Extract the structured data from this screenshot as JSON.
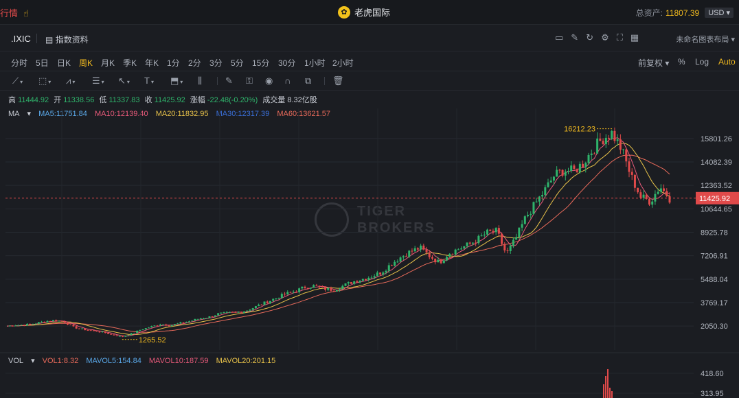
{
  "topbar": {
    "left_label": "行情",
    "hand_icon": "hand-icon",
    "app_name": "老虎国际",
    "logo_icon": "tiger-logo-icon",
    "asset_label": "总资产:",
    "asset_value": "11807.39",
    "currency": "USD"
  },
  "titlebar": {
    "symbol": ".IXIC",
    "info_label": "指数资料",
    "layout_label": "未命名图表布局"
  },
  "periods": [
    "分时",
    "5日",
    "日K",
    "周K",
    "月K",
    "季K",
    "年K",
    "1分",
    "2分",
    "3分",
    "5分",
    "15分",
    "30分",
    "1小时",
    "2小时"
  ],
  "active_period": "周K",
  "period_right": {
    "adjust": "前复权",
    "pct": "%",
    "log": "Log",
    "auto": "Auto"
  },
  "ohlc": {
    "high_label": "高",
    "high": "11444.92",
    "open_label": "开",
    "open": "11338.56",
    "low_label": "低",
    "low": "11337.83",
    "close_label": "收",
    "close": "11425.92",
    "change_label": "涨幅",
    "change": "-22.48(-0.20%)",
    "vol_label": "成交量",
    "vol": "8.32亿股"
  },
  "ma_legend": {
    "title": "MA",
    "ma5": "MA5:11751.84",
    "ma10": "MA10:12139.40",
    "ma20": "MA20:11832.95",
    "ma30": "MA30:12317.39",
    "ma60": "MA60:13621.57"
  },
  "vol_legend": {
    "title": "VOL",
    "vol1": "VOL1:8.32",
    "mavol5": "MAVOL5:154.84",
    "mavol10": "MAVOL10:187.59",
    "mavol20": "MAVOL20:201.15"
  },
  "colors": {
    "up": "#2fb36b",
    "down": "#e04a4a",
    "accent": "#f0b91f",
    "ma5": "#5aa8e8",
    "ma10": "#e85a7a",
    "ma20": "#e8c24a",
    "ma30": "#3a6fd8",
    "ma60": "#e86a5a"
  },
  "watermark": {
    "line1": "TIGER",
    "line2": "BROKERS"
  },
  "chart_data": {
    "type": "line",
    "price_axis_ticks": [
      "15801.26",
      "14082.39",
      "12363.52",
      "10644.65",
      "8925.78",
      "7206.91",
      "5488.04",
      "3769.17",
      "2050.30"
    ],
    "current_price": "11425.92",
    "max_annotation": "16212.23",
    "min_annotation": "1265.52",
    "volume_axis_ticks": [
      "418.60",
      "313.95"
    ],
    "series": [
      {
        "name": "IXIC",
        "values": [
          2050,
          2120,
          2150,
          2250,
          2400,
          2480,
          2350,
          1950,
          1800,
          1700,
          1600,
          1400,
          1265,
          1500,
          1800,
          2000,
          2200,
          2100,
          2250,
          2400,
          2600,
          2700,
          2950,
          3000,
          3050,
          3200,
          3500,
          3800,
          4100,
          4400,
          4600,
          4900,
          5000,
          4800,
          4700,
          5000,
          5300,
          5500,
          5700,
          6000,
          6600,
          7100,
          7500,
          7800,
          7200,
          6700,
          7400,
          7700,
          8000,
          8400,
          8900,
          9000,
          7300,
          8500,
          10000,
          11000,
          12000,
          13100,
          13500,
          13400,
          14000,
          15000,
          15800,
          16212,
          15000,
          13000,
          11500,
          11200,
          12300,
          11426
        ]
      }
    ]
  }
}
